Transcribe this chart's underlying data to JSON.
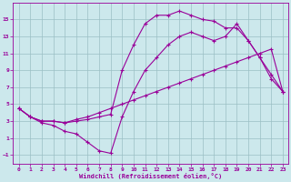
{
  "background_color": "#cce8ec",
  "grid_color": "#9bbfc4",
  "line_color": "#990099",
  "xlim": [
    -0.5,
    23.5
  ],
  "ylim": [
    -2,
    17
  ],
  "xticks": [
    0,
    1,
    2,
    3,
    4,
    5,
    6,
    7,
    8,
    9,
    10,
    11,
    12,
    13,
    14,
    15,
    16,
    17,
    18,
    19,
    20,
    21,
    22,
    23
  ],
  "yticks": [
    -1,
    1,
    3,
    5,
    7,
    9,
    11,
    13,
    15
  ],
  "xlabel": "Windchill (Refroidissement éolien,°C)",
  "line1_x": [
    0,
    1,
    2,
    3,
    4,
    5,
    6,
    7,
    8,
    9,
    10,
    11,
    12,
    13,
    14,
    15,
    16,
    17,
    18,
    19,
    20,
    21,
    22,
    23
  ],
  "line1_y": [
    4.5,
    3.5,
    3.0,
    3.0,
    2.8,
    3.2,
    3.5,
    4.0,
    4.5,
    5.0,
    5.5,
    6.0,
    6.5,
    7.0,
    7.5,
    8.0,
    8.5,
    9.0,
    9.5,
    10.0,
    10.5,
    11.0,
    11.5,
    6.5
  ],
  "line2_x": [
    0,
    1,
    2,
    3,
    4,
    5,
    6,
    7,
    8,
    9,
    10,
    11,
    12,
    13,
    14,
    15,
    16,
    17,
    18,
    19,
    20,
    21,
    22,
    23
  ],
  "line2_y": [
    4.5,
    3.5,
    3.0,
    3.0,
    2.8,
    3.0,
    3.2,
    3.5,
    3.8,
    9.0,
    12.0,
    14.5,
    15.5,
    15.5,
    16.0,
    15.5,
    15.0,
    14.8,
    14.0,
    14.0,
    12.5,
    10.5,
    8.0,
    6.5
  ],
  "line3_x": [
    0,
    1,
    2,
    3,
    4,
    5,
    6,
    7,
    8,
    9,
    10,
    11,
    12,
    13,
    14,
    15,
    16,
    17,
    18,
    19,
    20,
    21,
    22,
    23
  ],
  "line3_y": [
    4.5,
    3.5,
    2.8,
    2.5,
    1.8,
    1.5,
    0.5,
    -0.5,
    -0.8,
    3.5,
    6.5,
    9.0,
    10.5,
    12.0,
    13.0,
    13.5,
    13.0,
    12.5,
    13.0,
    14.5,
    12.5,
    10.5,
    8.5,
    6.5
  ]
}
